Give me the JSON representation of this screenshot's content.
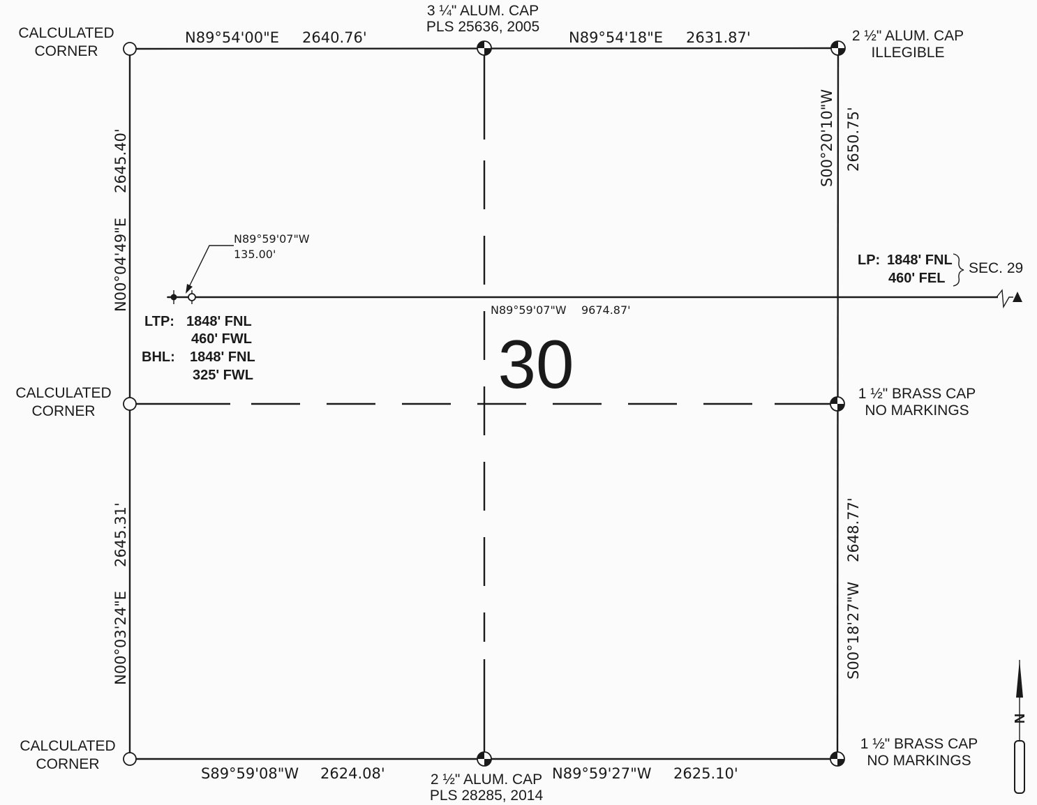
{
  "section": {
    "number": "30",
    "adjacent_label": "SEC. 29"
  },
  "monuments": {
    "nw": {
      "line1": "CALCULATED",
      "line2": "CORNER"
    },
    "n_quarter": {
      "line1": "3 ¼\" ALUM. CAP",
      "line2": "PLS 25636, 2005"
    },
    "ne": {
      "line1": "2 ½\" ALUM. CAP",
      "line2": "ILLEGIBLE"
    },
    "w_quarter": {
      "line1": "CALCULATED",
      "line2": "CORNER"
    },
    "e_quarter": {
      "line1": "1 ½\" BRASS CAP",
      "line2": "NO MARKINGS"
    },
    "sw": {
      "line1": "CALCULATED",
      "line2": "CORNER"
    },
    "s_quarter": {
      "line1": "2 ½\" ALUM. CAP",
      "line2": "PLS 28285,  2014"
    },
    "se": {
      "line1": "1 ½\" BRASS CAP",
      "line2": "NO MARKINGS"
    }
  },
  "bearings": {
    "north_west": {
      "bearing": "N89°54'00\"E",
      "distance": "2640.76'"
    },
    "north_east": {
      "bearing": "N89°54'18\"E",
      "distance": "2631.87'"
    },
    "east_north": {
      "bearing": "S00°20'10\"W",
      "distance": "2650.75'"
    },
    "east_south": {
      "bearing": "S00°18'27\"W",
      "distance": "2648.77'"
    },
    "south_west": {
      "bearing": "S89°59'08\"W",
      "distance": "2624.08'"
    },
    "south_east": {
      "bearing": "N89°59'27\"W",
      "distance": "2625.10'"
    },
    "west_north": {
      "bearing": "N00°04'49\"E",
      "distance": "2645.40'"
    },
    "west_south": {
      "bearing": "N00°03'24\"E",
      "distance": "2645.31'"
    }
  },
  "wellbore": {
    "lateral_bearing": "N89°59'07\"W",
    "lateral_distance": "9674.87'",
    "offset_bearing": "N89°59'07\"W",
    "offset_distance": "135.00'",
    "lp": {
      "label": "LP:",
      "fnl": "1848' FNL",
      "fel": "460' FEL"
    },
    "ltp": {
      "label": "LTP:",
      "fnl": "1848' FNL",
      "fwl": "460' FWL"
    },
    "bhl": {
      "label": "BHL:",
      "fnl": "1848' FNL",
      "fwl": "325' FWL"
    }
  },
  "north_arrow": {
    "letter": "N"
  }
}
